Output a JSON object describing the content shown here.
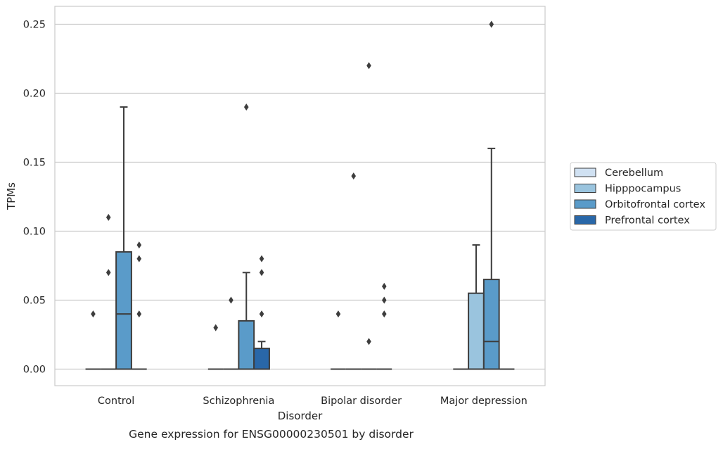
{
  "chart_data": {
    "type": "box",
    "title": "",
    "caption": "Gene expression for ENSG00000230501 by disorder",
    "xlabel": "Disorder",
    "ylabel": "TPMs",
    "ylim": [
      -0.012,
      0.263
    ],
    "yticks": [
      0.0,
      0.05,
      0.1,
      0.15,
      0.2,
      0.25
    ],
    "ytick_labels": [
      "0.00",
      "0.05",
      "0.10",
      "0.15",
      "0.20",
      "0.25"
    ],
    "grid": "horizontal",
    "legend_position": "right",
    "categories": [
      "Control",
      "Schizophrenia",
      "Bipolar disorder",
      "Major depression"
    ],
    "series": [
      {
        "name": "Cerebellum",
        "color": "#d0e1f2",
        "boxes": [
          {
            "q1": 0,
            "median": 0,
            "q3": 0,
            "whisker_low": 0,
            "whisker_high": 0,
            "outliers": [
              0.04
            ]
          },
          {
            "q1": 0,
            "median": 0,
            "q3": 0,
            "whisker_low": 0,
            "whisker_high": 0,
            "outliers": [
              0.03
            ]
          },
          {
            "q1": 0,
            "median": 0,
            "q3": 0,
            "whisker_low": 0,
            "whisker_high": 0,
            "outliers": [
              0.04
            ]
          },
          {
            "q1": 0,
            "median": 0,
            "q3": 0,
            "whisker_low": 0,
            "whisker_high": 0,
            "outliers": []
          }
        ]
      },
      {
        "name": "Hipppocampus",
        "color": "#9ac4de",
        "boxes": [
          {
            "q1": 0,
            "median": 0,
            "q3": 0,
            "whisker_low": 0,
            "whisker_high": 0,
            "outliers": [
              0.07,
              0.11
            ]
          },
          {
            "q1": 0,
            "median": 0,
            "q3": 0,
            "whisker_low": 0,
            "whisker_high": 0,
            "outliers": [
              0.05
            ]
          },
          {
            "q1": 0,
            "median": 0,
            "q3": 0,
            "whisker_low": 0,
            "whisker_high": 0,
            "outliers": [
              0.14
            ]
          },
          {
            "q1": 0,
            "median": 0,
            "q3": 0.055,
            "whisker_low": 0,
            "whisker_high": 0.09,
            "outliers": []
          }
        ]
      },
      {
        "name": "Orbitofrontal cortex",
        "color": "#5a9bc9",
        "boxes": [
          {
            "q1": 0,
            "median": 0.04,
            "q3": 0.085,
            "whisker_low": 0,
            "whisker_high": 0.19,
            "outliers": []
          },
          {
            "q1": 0,
            "median": 0,
            "q3": 0.035,
            "whisker_low": 0,
            "whisker_high": 0.07,
            "outliers": [
              0.19
            ]
          },
          {
            "q1": 0,
            "median": 0,
            "q3": 0,
            "whisker_low": 0,
            "whisker_high": 0,
            "outliers": [
              0.02,
              0.22
            ]
          },
          {
            "q1": 0,
            "median": 0.02,
            "q3": 0.065,
            "whisker_low": 0,
            "whisker_high": 0.16,
            "outliers": [
              0.25
            ]
          }
        ]
      },
      {
        "name": "Prefrontal cortex",
        "color": "#2967a8",
        "boxes": [
          {
            "q1": 0,
            "median": 0,
            "q3": 0,
            "whisker_low": 0,
            "whisker_high": 0,
            "outliers": [
              0.04,
              0.08,
              0.09
            ]
          },
          {
            "q1": 0,
            "median": 0,
            "q3": 0.015,
            "whisker_low": 0,
            "whisker_high": 0.02,
            "outliers": [
              0.04,
              0.07,
              0.08
            ]
          },
          {
            "q1": 0,
            "median": 0,
            "q3": 0,
            "whisker_low": 0,
            "whisker_high": 0,
            "outliers": [
              0.04,
              0.05,
              0.06
            ]
          },
          {
            "q1": 0,
            "median": 0,
            "q3": 0,
            "whisker_low": 0,
            "whisker_high": 0,
            "outliers": []
          }
        ]
      }
    ]
  }
}
